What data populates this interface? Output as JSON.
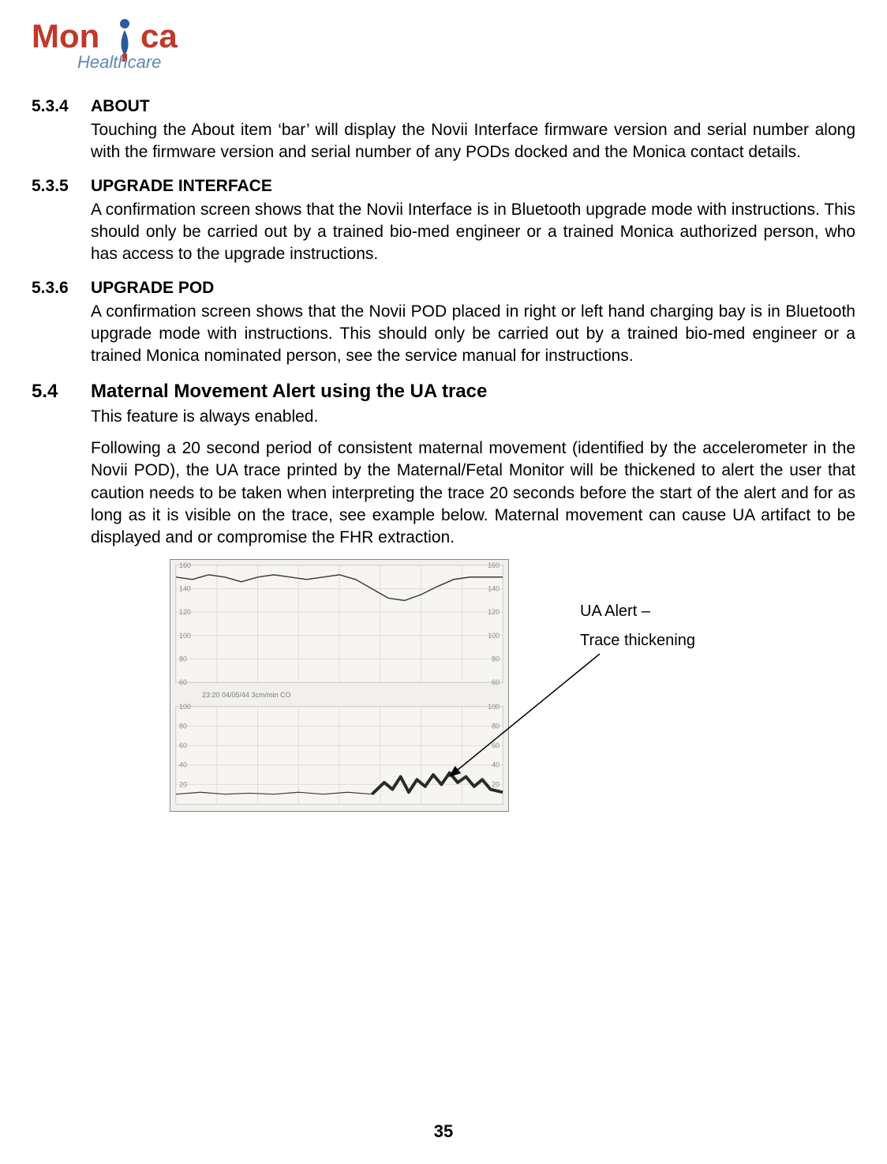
{
  "logo": {
    "text_main": "Mon",
    "text_tail": "ca",
    "subtitle": "Healthcare",
    "primary_color": "#c0392b",
    "accent_color": "#2b5aa0",
    "subtitle_color": "#6186b5"
  },
  "sections": {
    "s534": {
      "num": "5.3.4",
      "title": "ABOUT",
      "body": "Touching the About item ‘bar’ will display the Novii Interface firmware version and serial number along with the firmware version and serial number of any PODs docked and the Monica contact details."
    },
    "s535": {
      "num": "5.3.5",
      "title": "UPGRADE INTERFACE",
      "body": "A confirmation screen shows that the Novii Interface is in Bluetooth upgrade mode with instructions. This should only be carried out by a trained bio-med engineer or a trained Monica authorized person, who has access to the upgrade instructions."
    },
    "s536": {
      "num": "5.3.6",
      "title": "UPGRADE POD",
      "body": "A confirmation screen shows that the Novii POD placed in right or left hand charging bay is in Bluetooth upgrade mode with instructions. This should only be carried out by a trained bio-med engineer or a trained Monica nominated person, see the service manual for instructions."
    },
    "s54": {
      "num": "5.4",
      "title": "Maternal Movement Alert using the UA trace",
      "body1": "This feature is always enabled.",
      "body2": "Following a 20 second period of consistent maternal movement (identified by the accelerometer in the Novii POD), the UA trace printed by the Maternal/Fetal Monitor will be thickened to alert the user that caution needs to be taken when interpreting the trace 20 seconds before the start of the alert and for as long as it is visible on the trace, see example below. Maternal movement can cause UA artifact to be displayed and or compromise the FHR extraction."
    }
  },
  "callout": {
    "line1": "UA Alert –",
    "line2": "Trace thickening"
  },
  "chart": {
    "type": "strip-chart",
    "background_color": "#f2f0ed",
    "panel_bg": "#f7f5f2",
    "grid_color": "#e0ddd8",
    "label_color": "#8a8a8a",
    "trace_color": "#3a3a3a",
    "thick_trace_color": "#2a2a2a",
    "timestamp": "23:20  04/05/44  3cm/min  CO",
    "upper": {
      "ylim": [
        60,
        160
      ],
      "ticks_left": [
        160,
        140,
        120,
        100,
        80,
        60
      ],
      "ticks_right": [
        160,
        140,
        120,
        100,
        80,
        60
      ],
      "series": [
        [
          0,
          150
        ],
        [
          20,
          148
        ],
        [
          40,
          152
        ],
        [
          60,
          150
        ],
        [
          80,
          146
        ],
        [
          100,
          150
        ],
        [
          120,
          152
        ],
        [
          140,
          150
        ],
        [
          160,
          148
        ],
        [
          180,
          150
        ],
        [
          200,
          152
        ],
        [
          220,
          148
        ],
        [
          240,
          140
        ],
        [
          260,
          132
        ],
        [
          280,
          130
        ],
        [
          300,
          135
        ],
        [
          320,
          142
        ],
        [
          340,
          148
        ],
        [
          360,
          150
        ],
        [
          380,
          150
        ],
        [
          400,
          150
        ]
      ]
    },
    "lower": {
      "ylim": [
        0,
        100
      ],
      "ticks_left": [
        100,
        80,
        60,
        40,
        20
      ],
      "ticks_right": [
        100,
        80,
        60,
        40,
        20
      ],
      "thin_series": [
        [
          0,
          10
        ],
        [
          30,
          12
        ],
        [
          60,
          10
        ],
        [
          90,
          11
        ],
        [
          120,
          10
        ],
        [
          150,
          12
        ],
        [
          180,
          10
        ],
        [
          210,
          12
        ],
        [
          240,
          10
        ]
      ],
      "thick_series": [
        [
          240,
          10
        ],
        [
          255,
          22
        ],
        [
          265,
          15
        ],
        [
          275,
          28
        ],
        [
          285,
          12
        ],
        [
          295,
          25
        ],
        [
          305,
          18
        ],
        [
          315,
          30
        ],
        [
          325,
          20
        ],
        [
          335,
          32
        ],
        [
          345,
          22
        ],
        [
          355,
          28
        ],
        [
          365,
          18
        ],
        [
          375,
          25
        ],
        [
          385,
          15
        ],
        [
          400,
          12
        ]
      ]
    }
  },
  "page_number": "35"
}
